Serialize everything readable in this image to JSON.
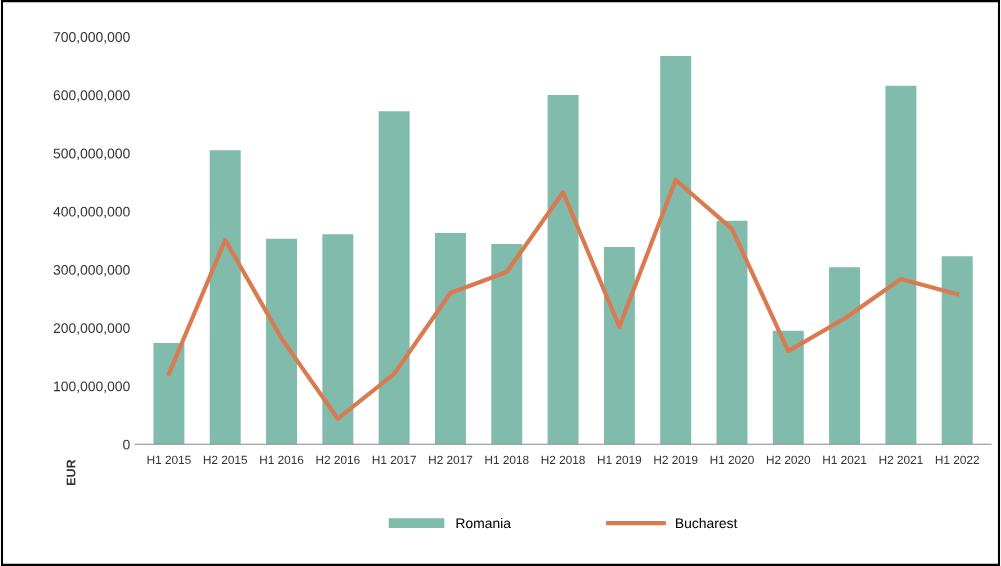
{
  "chart_data": {
    "type": "bar",
    "ylabel": "EUR",
    "categories": [
      "H1 2015",
      "H2 2015",
      "H1 2016",
      "H2 2016",
      "H1 2017",
      "H2 2017",
      "H1 2018",
      "H2 2018",
      "H1 2019",
      "H2 2019",
      "H1 2020",
      "H2 2020",
      "H1 2021",
      "H2 2021",
      "H1 2022"
    ],
    "series": [
      {
        "name": "Romania",
        "type": "bar",
        "color": "#80bbab",
        "values": [
          174000000,
          505000000,
          353000000,
          361000000,
          572000000,
          363000000,
          344000000,
          600000000,
          339000000,
          667000000,
          384000000,
          195000000,
          304000000,
          616000000,
          323000000
        ]
      },
      {
        "name": "Bucharest",
        "type": "line",
        "color": "#d97a50",
        "values": [
          121000000,
          351000000,
          182000000,
          44000000,
          121000000,
          260000000,
          296000000,
          433000000,
          202000000,
          454000000,
          370000000,
          160000000,
          216000000,
          284000000,
          258000000
        ]
      }
    ],
    "ylim": [
      0,
      700000000
    ],
    "yticks": [
      {
        "value": 0,
        "label": "0"
      },
      {
        "value": 100000000,
        "label": "100,000,000"
      },
      {
        "value": 200000000,
        "label": "200,000,000"
      },
      {
        "value": 300000000,
        "label": "300,000,000"
      },
      {
        "value": 400000000,
        "label": "400,000,000"
      },
      {
        "value": 500000000,
        "label": "500,000,000"
      },
      {
        "value": 600000000,
        "label": "600,000,000"
      },
      {
        "value": 700000000,
        "label": "700,000,000"
      }
    ],
    "grid": false,
    "legend": "bottom",
    "marker": "none",
    "line_style": "solid"
  }
}
